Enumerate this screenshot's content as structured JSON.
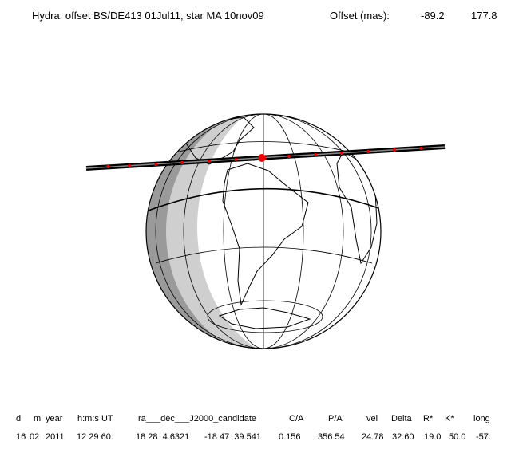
{
  "header": {
    "title": "Hydra: offset BS/DE413 01Jul11, star MA 10nov09",
    "offset_label": "Offset (mas):",
    "offset": [
      "-89.2",
      "177.8"
    ]
  },
  "table": {
    "columns": [
      "d",
      "m",
      "year",
      "h:m:s UT",
      "ra___dec___J2000_candidate",
      "C/A",
      "P/A",
      "vel",
      "Delta",
      "R*",
      "K*",
      "long"
    ],
    "row": [
      "16",
      "02",
      "2011",
      "12 29 60.",
      "18 28  4.6321",
      "-18 47  39.541",
      "0.156",
      "356.54",
      "24.78",
      "32.60",
      "19.0",
      "50.0",
      "-57."
    ]
  }
}
